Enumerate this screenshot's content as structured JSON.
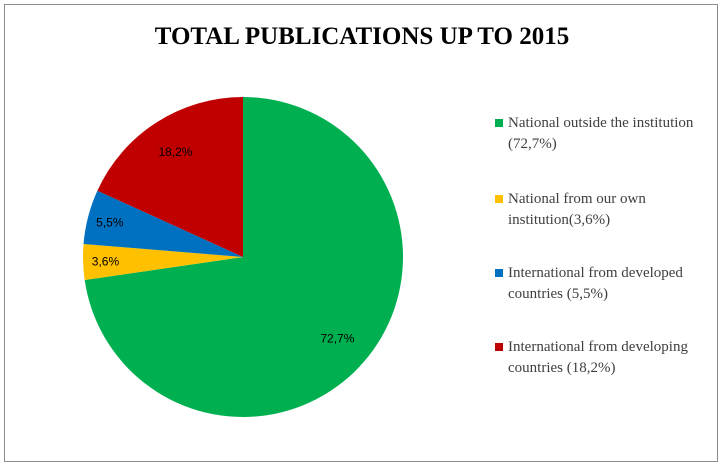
{
  "chart_data": {
    "type": "pie",
    "title": "TOTAL PUBLICATIONS UP TO 2015",
    "slices": [
      {
        "name": "National outside the institution (72,7%)",
        "value": 72.7,
        "label": "72,7%",
        "color": "#00B050"
      },
      {
        "name": "National from our own institution(3,6%)",
        "value": 3.6,
        "label": "3,6%",
        "color": "#FFC000"
      },
      {
        "name": "International from developed countries (5,5%)",
        "value": 5.5,
        "label": "5,5%",
        "color": "#0070C0"
      },
      {
        "name": "International from developing countries (18,2%)",
        "value": 18.2,
        "label": "18,2%",
        "color": "#C00000"
      }
    ],
    "start_angle": "12 o'clock",
    "direction": "clockwise",
    "legend_position": "right"
  }
}
